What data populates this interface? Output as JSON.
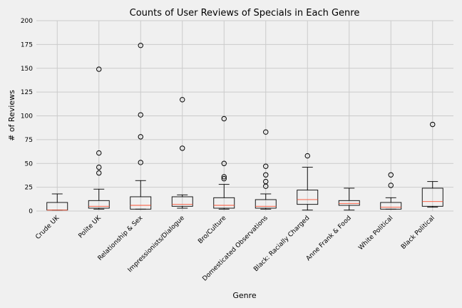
{
  "chart_data": {
    "type": "box",
    "title": "Counts of User Reviews of Specials in Each Genre",
    "xlabel": "Genre",
    "ylabel": "# of Reviews",
    "ylim": [
      0,
      200
    ],
    "yticks": [
      0,
      25,
      50,
      75,
      100,
      125,
      150,
      175,
      200
    ],
    "grid": true,
    "categories": [
      "Crude UK",
      "Polite UK",
      "Relationship & Sex",
      "Impressionists/Dialogue",
      "Bro/Culture",
      "Domesticated Observations",
      "Black: Racially Charged",
      "Anne Frank & Food",
      "White Political",
      "Black Political"
    ],
    "boxes": [
      {
        "whislo": 1,
        "q1": 1,
        "med": 1,
        "q3": 9,
        "whishi": 18,
        "fliers": []
      },
      {
        "whislo": 2,
        "q1": 3,
        "med": 5,
        "q3": 11,
        "whishi": 23,
        "fliers": [
          40,
          46,
          61,
          149
        ]
      },
      {
        "whislo": 2,
        "q1": 2,
        "med": 6,
        "q3": 15,
        "whishi": 32,
        "fliers": [
          51,
          78,
          101,
          174
        ]
      },
      {
        "whislo": 3,
        "q1": 5,
        "med": 7,
        "q3": 15,
        "whishi": 17,
        "fliers": [
          66,
          117
        ]
      },
      {
        "whislo": 2,
        "q1": 3,
        "med": 6,
        "q3": 14,
        "whishi": 28,
        "fliers": [
          34,
          36,
          50,
          97
        ]
      },
      {
        "whislo": 2,
        "q1": 3,
        "med": 5,
        "q3": 12,
        "whishi": 18,
        "fliers": [
          26,
          31,
          38,
          47,
          83
        ]
      },
      {
        "whislo": 1,
        "q1": 7,
        "med": 12,
        "q3": 22,
        "whishi": 46,
        "fliers": [
          58
        ]
      },
      {
        "whislo": 1,
        "q1": 6,
        "med": 8,
        "q3": 11,
        "whishi": 24,
        "fliers": []
      },
      {
        "whislo": 2,
        "q1": 2,
        "med": 4,
        "q3": 9,
        "whishi": 14,
        "fliers": [
          27,
          38
        ]
      },
      {
        "whislo": 4,
        "q1": 5,
        "med": 10,
        "q3": 24,
        "whishi": 31,
        "fliers": [
          91
        ]
      }
    ],
    "colors": {
      "background": "#f0f0f0",
      "grid": "#cbcbcb",
      "box": "#000000",
      "median": "#fc4f30",
      "flier": "#000000"
    }
  }
}
